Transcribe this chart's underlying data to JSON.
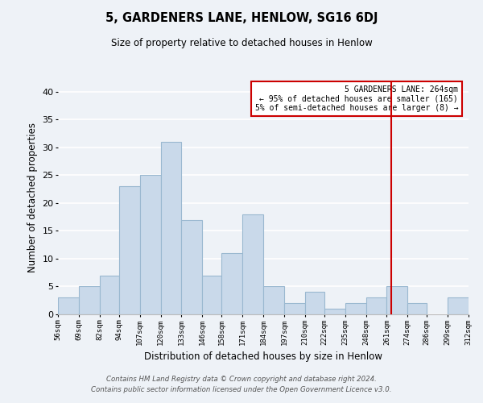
{
  "title": "5, GARDENERS LANE, HENLOW, SG16 6DJ",
  "subtitle": "Size of property relative to detached houses in Henlow",
  "xlabel": "Distribution of detached houses by size in Henlow",
  "ylabel": "Number of detached properties",
  "bin_edges": [
    56,
    69,
    82,
    94,
    107,
    120,
    133,
    146,
    158,
    171,
    184,
    197,
    210,
    222,
    235,
    248,
    261,
    274,
    286,
    299,
    312
  ],
  "bar_heights": [
    3,
    5,
    7,
    23,
    25,
    31,
    17,
    7,
    11,
    18,
    5,
    2,
    4,
    1,
    2,
    3,
    5,
    2,
    0,
    3
  ],
  "bar_color": "#c9d9ea",
  "bar_edge_color": "#9ab8d0",
  "bar_linewidth": 0.8,
  "vline_x": 264,
  "vline_color": "#cc0000",
  "yticks": [
    0,
    5,
    10,
    15,
    20,
    25,
    30,
    35,
    40
  ],
  "ylim": [
    0,
    42
  ],
  "tick_labels": [
    "56sqm",
    "69sqm",
    "82sqm",
    "94sqm",
    "107sqm",
    "120sqm",
    "133sqm",
    "146sqm",
    "158sqm",
    "171sqm",
    "184sqm",
    "197sqm",
    "210sqm",
    "222sqm",
    "235sqm",
    "248sqm",
    "261sqm",
    "274sqm",
    "286sqm",
    "299sqm",
    "312sqm"
  ],
  "annotation_title": "5 GARDENERS LANE: 264sqm",
  "annotation_line1": "← 95% of detached houses are smaller (165)",
  "annotation_line2": "5% of semi-detached houses are larger (8) →",
  "annotation_box_color": "#ffffff",
  "annotation_box_edge": "#cc0000",
  "background_color": "#eef2f7",
  "plot_bg_color": "#eef2f7",
  "grid_color": "#ffffff",
  "footer1": "Contains HM Land Registry data © Crown copyright and database right 2024.",
  "footer2": "Contains public sector information licensed under the Open Government Licence v3.0."
}
